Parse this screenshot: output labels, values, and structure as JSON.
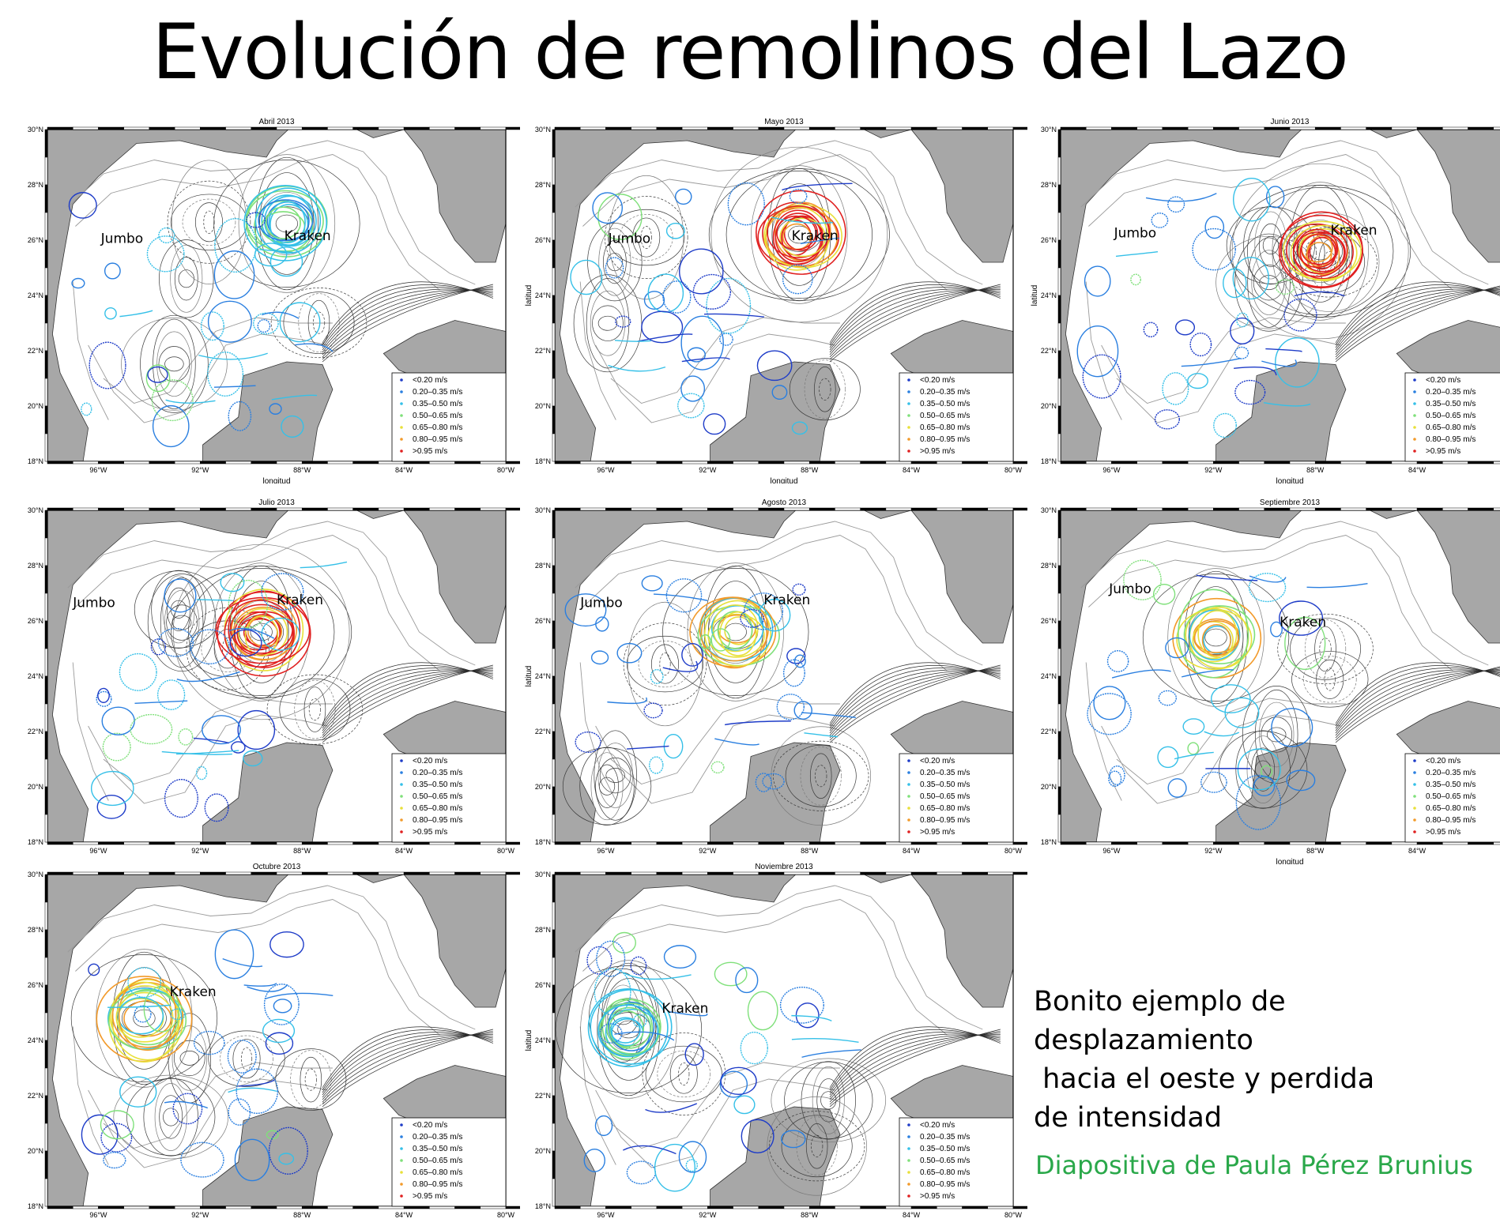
{
  "title": "Evolución de remolinos del Lazo",
  "axis": {
    "x_label": "longitud",
    "y_label": "latitud",
    "lon_ticks": [
      "96°W",
      "92°W",
      "88°W",
      "84°W",
      "80°W"
    ],
    "lat_ticks": [
      "30°N",
      "28°N",
      "26°N",
      "24°N",
      "22°N",
      "20°N",
      "18°N"
    ]
  },
  "legend": [
    "<0.20 m/s",
    "0.20–0.35 m/s",
    "0.35–0.50 m/s",
    "0.50–0.65 m/s",
    "0.65–0.80 m/s",
    "0.80–0.95 m/s",
    ">0.95 m/s"
  ],
  "legend_colors": [
    "#1e3cc8",
    "#2a7fe0",
    "#35c0e8",
    "#7fe07a",
    "#e8e03a",
    "#f29a2a",
    "#e02020"
  ],
  "colors": {
    "land": "#a7a7a7",
    "sea": "#ffffff",
    "credit": "#2aa84a"
  },
  "panels": [
    {
      "month": "Abril 2013",
      "labels": [
        {
          "text": "Jumbo",
          "lon": -95.9,
          "lat": 25.9
        },
        {
          "text": "Kraken",
          "lon": -88.7,
          "lat": 26.0
        }
      ],
      "kraken": {
        "lon": -88.6,
        "lat": 26.6,
        "intensity": "low"
      },
      "show_xlabel": true,
      "show_ylabel": false
    },
    {
      "month": "Mayo 2013",
      "labels": [
        {
          "text": "Jumbo",
          "lon": -95.9,
          "lat": 25.9
        },
        {
          "text": "Kraken",
          "lon": -88.7,
          "lat": 26.0
        }
      ],
      "kraken": {
        "lon": -88.4,
        "lat": 26.2,
        "intensity": "high"
      },
      "show_xlabel": true,
      "show_ylabel": true
    },
    {
      "month": "Junio 2013",
      "labels": [
        {
          "text": "Jumbo",
          "lon": -95.9,
          "lat": 26.1
        },
        {
          "text": "Kraken",
          "lon": -87.4,
          "lat": 26.2
        }
      ],
      "kraken": {
        "lon": -87.8,
        "lat": 25.6,
        "intensity": "high"
      },
      "show_xlabel": true,
      "show_ylabel": true
    },
    {
      "month": "Julio 2013",
      "labels": [
        {
          "text": "Jumbo",
          "lon": -97.0,
          "lat": 26.5
        },
        {
          "text": "Kraken",
          "lon": -89.0,
          "lat": 26.6
        }
      ],
      "kraken": {
        "lon": -89.6,
        "lat": 25.6,
        "intensity": "high"
      },
      "show_xlabel": false,
      "show_ylabel": false
    },
    {
      "month": "Agosto 2013",
      "labels": [
        {
          "text": "Jumbo",
          "lon": -97.0,
          "lat": 26.5
        },
        {
          "text": "Kraken",
          "lon": -89.8,
          "lat": 26.6
        }
      ],
      "kraken": {
        "lon": -90.9,
        "lat": 25.6,
        "intensity": "medium"
      },
      "show_xlabel": false,
      "show_ylabel": true
    },
    {
      "month": "Septiembre 2013",
      "labels": [
        {
          "text": "Jumbo",
          "lon": -96.1,
          "lat": 27.0
        },
        {
          "text": "Kraken",
          "lon": -89.4,
          "lat": 25.8
        }
      ],
      "kraken": {
        "lon": -91.9,
        "lat": 25.4,
        "intensity": "medium"
      },
      "show_xlabel": true,
      "show_ylabel": false
    },
    {
      "month": "Octubre 2013",
      "labels": [
        {
          "text": "Kraken",
          "lon": -93.2,
          "lat": 25.6
        }
      ],
      "kraken": {
        "lon": -94.2,
        "lat": 24.8,
        "intensity": "medium"
      },
      "show_xlabel": false,
      "show_ylabel": false
    },
    {
      "month": "Noviembre 2013",
      "labels": [
        {
          "text": "Kraken",
          "lon": -93.8,
          "lat": 25.0
        }
      ],
      "kraken": {
        "lon": -95.1,
        "lat": 24.4,
        "intensity": "low"
      },
      "show_xlabel": false,
      "show_ylabel": true
    }
  ],
  "caption_lines": [
    "Bonito ejemplo de",
    "desplazamiento",
    " hacia el oeste y perdida",
    "de intensidad"
  ],
  "credit": "Diapositiva de Paula Pérez Brunius"
}
